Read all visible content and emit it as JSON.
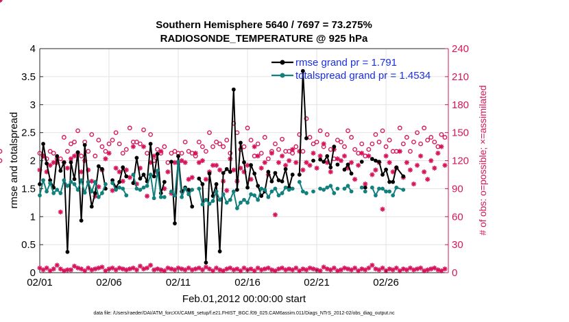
{
  "chart_data": {
    "type": "line",
    "title": "Southern Hemisphere 5640 / 7697 = 73.275%",
    "subtitle": "RADIOSONDE_TEMPERATURE @ 925 hPa",
    "xlabel": "Feb.01,2012 00:00:00 start",
    "ylabel": "rmse and totalspread",
    "ylabel_right": "# of obs: o=possible; ×=assimilated",
    "footer": "data file: /Users/raeder/DAI/ATM_forcXX/CAM6_setup/f.e21.FHIST_BGC.f09_025.CAM6assim.011/Diags_NTrS_2012-02/obs_diag_output.nc",
    "xlim": [
      0,
      29.5
    ],
    "ylim": [
      0,
      4
    ],
    "ylim_right": [
      0,
      240
    ],
    "x_ticks": [
      0,
      5,
      10,
      15,
      20,
      25
    ],
    "x_tick_labels": [
      "02/01",
      "02/06",
      "02/11",
      "02/16",
      "02/21",
      "02/26"
    ],
    "y_ticks": [
      0,
      0.5,
      1,
      1.5,
      2,
      2.5,
      3,
      3.5,
      4
    ],
    "y_tick_labels": [
      "0",
      "0.5",
      "1",
      "1.5",
      "2",
      "2.5",
      "3",
      "3.5",
      "4"
    ],
    "y_right_ticks": [
      0,
      30,
      60,
      90,
      120,
      150,
      180,
      210,
      240
    ],
    "y_right_tick_labels": [
      "0",
      "30",
      "60",
      "90",
      "120",
      "150",
      "180",
      "210",
      "240"
    ],
    "grid": true,
    "legend_position": "top-right",
    "x": [
      0,
      0.25,
      0.5,
      0.75,
      1,
      1.25,
      1.5,
      1.75,
      2,
      2.25,
      2.5,
      2.75,
      3,
      3.25,
      3.5,
      3.75,
      4,
      4.25,
      4.5,
      4.75,
      5,
      5.25,
      5.5,
      5.75,
      6,
      6.25,
      6.5,
      6.75,
      7,
      7.25,
      7.5,
      7.75,
      8,
      8.25,
      8.5,
      8.75,
      9,
      9.25,
      9.5,
      9.75,
      10,
      10.25,
      10.5,
      10.75,
      11,
      11.25,
      11.5,
      11.75,
      12,
      12.25,
      12.5,
      12.75,
      13,
      13.25,
      13.5,
      13.75,
      14,
      14.25,
      14.5,
      14.75,
      15,
      15.25,
      15.5,
      15.75,
      16,
      16.25,
      16.5,
      16.75,
      17,
      17.25,
      17.5,
      17.75,
      18,
      18.25,
      18.5,
      18.75,
      19,
      19.25,
      19.5,
      19.75,
      20,
      20.25,
      20.5,
      20.75,
      21,
      21.25,
      21.5,
      21.75,
      22,
      22.25,
      22.5,
      22.75,
      23,
      23.25,
      23.5,
      23.75,
      24,
      24.25,
      24.5,
      24.75,
      25,
      25.25,
      25.5,
      25.75,
      26,
      26.25,
      26.5,
      26.75,
      27,
      27.25,
      27.5,
      27.75,
      28,
      28.25,
      28.5,
      28.75,
      29,
      29.25
    ],
    "series": [
      {
        "name": "rmse grand pr = 1.791",
        "color": "#000000",
        "values": [
          1.58,
          2.3,
          1.95,
          1.65,
          1.52,
          2.08,
          1.82,
          1.97,
          0.37,
          1.97,
          1.67,
          2.15,
          0.93,
          2.28,
          1.62,
          1.18,
          1.42,
          1.9,
          1.85,
          1.5,
          null,
          1.65,
          1.52,
          1.62,
          1.88,
          1.72,
          null,
          1.6,
          2.05,
          1.68,
          1.75,
          1.63,
          2.3,
          1.72,
          2.12,
          1.42,
          1.62,
          null,
          1.98,
          0.88,
          2.08,
          1.45,
          1.52,
          1.48,
          1.18,
          null,
          1.68,
          1.58,
          0.18,
          1.77,
          1.37,
          1.58,
          0.38,
          1.78,
          1.85,
          1.8,
          3.27,
          1.48,
          2.32,
          1.97,
          1.52,
          1.92,
          1.77,
          1.55,
          1.37,
          1.45,
          1.8,
          1.63,
          1.78,
          1.65,
          1.63,
          1.85,
          1.52,
          1.75,
          null,
          1.75,
          3.6,
          2.4,
          null,
          2.0,
          null,
          2.02,
          1.98,
          2.08,
          1.88,
          2.25,
          1.93,
          null,
          1.84,
          1.93,
          1.77,
          null,
          null,
          1.98,
          1.52,
          null,
          2.03,
          2.0,
          1.98,
          1.75,
          1.84,
          1.62,
          1.62,
          1.88,
          null,
          1.72,
          null,
          null,
          null,
          null,
          null,
          null,
          null,
          null,
          null,
          null,
          null,
          null
        ],
        "connect": [
          [
            0,
            19
          ],
          [
            20,
            25
          ],
          [
            27,
            36
          ],
          [
            38,
            44
          ],
          [
            46,
            73
          ],
          [
            75,
            77
          ],
          [
            80,
            85
          ],
          [
            87,
            90
          ],
          [
            92,
            93
          ],
          [
            95,
            101
          ],
          [
            102,
            105
          ]
        ]
      },
      {
        "name": "totalspread grand pr = 1.4534",
        "color": "#12807d",
        "values": [
          1.38,
          1.65,
          1.45,
          1.6,
          1.42,
          1.48,
          1.42,
          1.65,
          1.55,
          1.62,
          1.58,
          1.48,
          1.65,
          1.43,
          1.62,
          1.45,
          1.62,
          1.35,
          1.42,
          1.58,
          null,
          1.6,
          1.48,
          1.52,
          1.5,
          1.38,
          null,
          1.75,
          1.5,
          1.48,
          1.52,
          1.55,
          1.75,
          1.33,
          1.82,
          1.35,
          1.35,
          null,
          1.45,
          1.38,
          1.98,
          1.35,
          1.5,
          1.4,
          1.48,
          null,
          1.5,
          1.22,
          1.3,
          1.23,
          1.28,
          1.45,
          1.3,
          1.4,
          1.25,
          1.3,
          1.45,
          1.15,
          1.25,
          1.3,
          1.25,
          1.4,
          1.38,
          1.3,
          1.5,
          1.48,
          1.35,
          1.45,
          1.5,
          1.38,
          1.42,
          1.52,
          1.48,
          1.5,
          null,
          1.62,
          1.45,
          1.42,
          null,
          1.45,
          null,
          1.5,
          1.48,
          1.52,
          1.55,
          1.42,
          1.5,
          null,
          1.5,
          1.55,
          1.45,
          null,
          null,
          1.52,
          1.45,
          null,
          1.52,
          1.38,
          1.5,
          1.5,
          1.45,
          1.45,
          1.38,
          1.52,
          null,
          1.48,
          null,
          null,
          null,
          null,
          null,
          null,
          null,
          null,
          null,
          null,
          null,
          null
        ],
        "connect": [
          [
            0,
            19
          ],
          [
            20,
            25
          ],
          [
            27,
            36
          ],
          [
            38,
            44
          ],
          [
            46,
            73
          ],
          [
            75,
            77
          ],
          [
            80,
            85
          ],
          [
            87,
            90
          ],
          [
            92,
            93
          ],
          [
            95,
            101
          ],
          [
            102,
            105
          ]
        ]
      }
    ],
    "obs_possible": [
      128,
      125,
      122,
      130,
      128,
      122,
      122,
      145,
      130,
      138,
      140,
      152,
      125,
      140,
      130,
      148,
      125,
      142,
      135,
      130,
      138,
      142,
      150,
      138,
      128,
      132,
      155,
      140,
      140,
      138,
      153,
      128,
      148,
      120,
      132,
      128,
      135,
      118,
      128,
      130,
      128,
      128,
      140,
      130,
      128,
      125,
      140,
      135,
      130,
      150,
      135,
      140,
      138,
      135,
      142,
      128,
      160,
      150,
      132,
      135,
      155,
      142,
      125,
      138,
      128,
      145,
      122,
      130,
      138,
      132,
      143,
      130,
      130,
      128,
      135,
      148,
      130,
      165,
      145,
      138,
      140,
      152,
      135,
      148,
      132,
      122,
      142,
      140,
      135,
      152,
      145,
      132,
      128,
      138,
      125,
      132,
      138,
      148,
      140,
      152,
      135,
      142,
      130,
      130,
      155,
      138,
      145,
      130,
      140,
      150,
      138,
      155,
      142,
      145,
      140,
      135,
      148,
      145,
      120,
      130
    ],
    "obs_assimilated": [
      110,
      125,
      108,
      115,
      118,
      118,
      65,
      118,
      112,
      122,
      125,
      128,
      108,
      120,
      110,
      98,
      82,
      92,
      110,
      122,
      128,
      88,
      112,
      108,
      98,
      110,
      102,
      135,
      95,
      112,
      135,
      82,
      118,
      125,
      108,
      130,
      90,
      108,
      85,
      118,
      118,
      120,
      118,
      100,
      102,
      128,
      118,
      120,
      100,
      108,
      115,
      115,
      110,
      98,
      88,
      122,
      110,
      98,
      112,
      108,
      115,
      100,
      135,
      125,
      112,
      118,
      105,
      128,
      62,
      118,
      125,
      115,
      120,
      132,
      118,
      130,
      110,
      118,
      115,
      128,
      112,
      125,
      138,
      118,
      108,
      132,
      122,
      120,
      125,
      112,
      118,
      100,
      115,
      128,
      95,
      125,
      105,
      110,
      118,
      68,
      125,
      118,
      108,
      112,
      130,
      102,
      118,
      110,
      95,
      115,
      125,
      108,
      100,
      120,
      112,
      128,
      135,
      115,
      108,
      120
    ],
    "obs_assimilated_low": [
      5,
      3,
      5,
      2,
      4,
      8,
      4,
      2,
      3,
      3,
      7,
      5,
      4,
      2,
      5,
      3,
      4,
      5,
      6,
      2,
      4,
      5,
      3,
      5,
      4,
      3,
      4,
      5,
      3,
      7,
      4,
      5,
      8,
      3,
      4,
      3,
      2,
      5,
      4,
      3,
      5,
      4,
      3,
      5,
      3,
      4,
      5,
      3,
      6,
      4,
      2,
      5,
      3,
      2,
      4,
      5,
      3,
      4,
      2,
      5,
      3,
      4,
      2,
      5,
      3,
      4,
      5,
      3,
      2,
      4,
      5,
      3,
      4,
      3,
      5,
      2,
      4,
      3,
      5,
      4,
      3,
      2,
      6,
      4,
      3,
      5,
      2,
      3,
      5,
      4,
      3,
      5,
      2,
      4,
      3,
      5,
      8,
      4,
      3,
      5,
      2,
      4,
      3,
      5,
      2,
      4,
      3,
      5,
      3,
      4,
      5,
      2,
      3,
      4,
      5,
      3,
      2,
      4,
      5,
      3
    ]
  }
}
